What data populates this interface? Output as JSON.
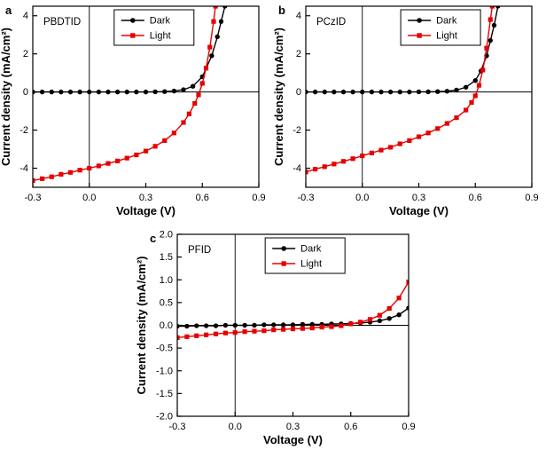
{
  "figure": {
    "background": "#ffffff"
  },
  "colors": {
    "dark_series": "#000000",
    "light_series": "#e60000",
    "axis": "#000000"
  },
  "chart_data": [
    {
      "id": "a",
      "type": "line",
      "panel_label": "a",
      "inner_label": "PBDTID",
      "xlabel": "Voltage (V)",
      "ylabel": "Current density (mA/cm²)",
      "xlim": [
        -0.3,
        0.9
      ],
      "ylim": [
        -5,
        4.5
      ],
      "xticks": [
        -0.3,
        0.0,
        0.3,
        0.6,
        0.9
      ],
      "xtick_labels": [
        "-0.3",
        "0.0",
        "0.3",
        "0.6",
        "0.9"
      ],
      "yticks": [
        -4,
        -2,
        0,
        2,
        4
      ],
      "ytick_labels": [
        "-4",
        "-2",
        "0",
        "2",
        "4"
      ],
      "zero_lines": true,
      "grid": false,
      "legend": {
        "position": "top-center",
        "x_frac": 0.36,
        "entries": [
          "Dark",
          "Light"
        ]
      },
      "series": [
        {
          "name": "Dark",
          "color": "#000000",
          "marker": "circle",
          "points": [
            [
              -0.3,
              0
            ],
            [
              -0.25,
              0
            ],
            [
              -0.2,
              0
            ],
            [
              -0.15,
              0
            ],
            [
              -0.1,
              0
            ],
            [
              -0.05,
              0
            ],
            [
              0,
              0
            ],
            [
              0.05,
              0
            ],
            [
              0.1,
              0
            ],
            [
              0.15,
              0
            ],
            [
              0.2,
              0
            ],
            [
              0.25,
              0
            ],
            [
              0.3,
              0
            ],
            [
              0.35,
              0.01
            ],
            [
              0.4,
              0.02
            ],
            [
              0.45,
              0.05
            ],
            [
              0.5,
              0.12
            ],
            [
              0.55,
              0.3
            ],
            [
              0.6,
              0.8
            ],
            [
              0.65,
              1.9
            ],
            [
              0.68,
              2.9
            ],
            [
              0.7,
              3.7
            ],
            [
              0.72,
              4.5
            ]
          ]
        },
        {
          "name": "Light",
          "color": "#e60000",
          "marker": "square",
          "points": [
            [
              -0.3,
              -4.65
            ],
            [
              -0.25,
              -4.55
            ],
            [
              -0.2,
              -4.45
            ],
            [
              -0.15,
              -4.32
            ],
            [
              -0.1,
              -4.22
            ],
            [
              -0.05,
              -4.1
            ],
            [
              0,
              -4.0
            ],
            [
              0.05,
              -3.88
            ],
            [
              0.1,
              -3.75
            ],
            [
              0.15,
              -3.62
            ],
            [
              0.2,
              -3.47
            ],
            [
              0.25,
              -3.3
            ],
            [
              0.3,
              -3.1
            ],
            [
              0.35,
              -2.85
            ],
            [
              0.4,
              -2.55
            ],
            [
              0.45,
              -2.15
            ],
            [
              0.5,
              -1.6
            ],
            [
              0.53,
              -1.15
            ],
            [
              0.56,
              -0.6
            ],
            [
              0.58,
              -0.15
            ],
            [
              0.6,
              0.45
            ],
            [
              0.62,
              1.25
            ],
            [
              0.64,
              2.35
            ],
            [
              0.66,
              3.7
            ],
            [
              0.67,
              4.5
            ]
          ]
        }
      ]
    },
    {
      "id": "b",
      "type": "line",
      "panel_label": "b",
      "inner_label": "PCzID",
      "xlabel": "Voltage (V)",
      "ylabel": "Current density (mA/cm²)",
      "xlim": [
        -0.3,
        0.9
      ],
      "ylim": [
        -5,
        4.5
      ],
      "xticks": [
        -0.3,
        0.0,
        0.3,
        0.6,
        0.9
      ],
      "xtick_labels": [
        "-0.3",
        "0.0",
        "0.3",
        "0.6",
        "0.9"
      ],
      "yticks": [
        -4,
        -2,
        0,
        2,
        4
      ],
      "ytick_labels": [
        "-4",
        "-2",
        "0",
        "2",
        "4"
      ],
      "zero_lines": true,
      "grid": false,
      "legend": {
        "position": "top-center",
        "x_frac": 0.42,
        "entries": [
          "Dark",
          "Light"
        ]
      },
      "series": [
        {
          "name": "Dark",
          "color": "#000000",
          "marker": "circle",
          "points": [
            [
              -0.3,
              0
            ],
            [
              -0.25,
              0
            ],
            [
              -0.2,
              0
            ],
            [
              -0.15,
              0
            ],
            [
              -0.1,
              0
            ],
            [
              -0.05,
              0
            ],
            [
              0,
              0
            ],
            [
              0.05,
              0
            ],
            [
              0.1,
              0
            ],
            [
              0.15,
              0
            ],
            [
              0.2,
              0
            ],
            [
              0.25,
              0
            ],
            [
              0.3,
              0.01
            ],
            [
              0.35,
              0.01
            ],
            [
              0.4,
              0.02
            ],
            [
              0.45,
              0.04
            ],
            [
              0.5,
              0.1
            ],
            [
              0.55,
              0.25
            ],
            [
              0.6,
              0.6
            ],
            [
              0.63,
              1.1
            ],
            [
              0.66,
              1.9
            ],
            [
              0.68,
              2.7
            ],
            [
              0.7,
              3.5
            ],
            [
              0.72,
              4.5
            ]
          ]
        },
        {
          "name": "Light",
          "color": "#e60000",
          "marker": "square",
          "points": [
            [
              -0.3,
              -4.2
            ],
            [
              -0.25,
              -4.05
            ],
            [
              -0.2,
              -3.92
            ],
            [
              -0.15,
              -3.78
            ],
            [
              -0.1,
              -3.64
            ],
            [
              -0.05,
              -3.5
            ],
            [
              0,
              -3.35
            ],
            [
              0.05,
              -3.2
            ],
            [
              0.1,
              -3.05
            ],
            [
              0.15,
              -2.9
            ],
            [
              0.2,
              -2.72
            ],
            [
              0.25,
              -2.55
            ],
            [
              0.3,
              -2.35
            ],
            [
              0.35,
              -2.15
            ],
            [
              0.4,
              -1.92
            ],
            [
              0.45,
              -1.65
            ],
            [
              0.5,
              -1.35
            ],
            [
              0.55,
              -0.95
            ],
            [
              0.58,
              -0.55
            ],
            [
              0.6,
              -0.2
            ],
            [
              0.62,
              0.35
            ],
            [
              0.64,
              1.15
            ],
            [
              0.66,
              2.3
            ],
            [
              0.68,
              3.8
            ],
            [
              0.69,
              4.5
            ]
          ]
        }
      ]
    },
    {
      "id": "c",
      "type": "line",
      "panel_label": "c",
      "inner_label": "PFID",
      "xlabel": "Voltage (V)",
      "ylabel": "Current density (mA/cm²)",
      "xlim": [
        -0.3,
        0.9
      ],
      "ylim": [
        -2,
        2
      ],
      "xticks": [
        -0.3,
        0.0,
        0.3,
        0.6,
        0.9
      ],
      "xtick_labels": [
        "-0.3",
        "0.0",
        "0.3",
        "0.6",
        "0.9"
      ],
      "yticks": [
        -2,
        -1.5,
        -1,
        -0.5,
        0,
        0.5,
        1,
        1.5,
        2
      ],
      "ytick_labels": [
        "-2.0",
        "-1.5",
        "-1.0",
        "-0.5",
        "0.0",
        "0.5",
        "1.0",
        "1.5",
        "2.0"
      ],
      "zero_lines": true,
      "grid": false,
      "legend": {
        "position": "top-center",
        "x_frac": 0.38,
        "entries": [
          "Dark",
          "Light"
        ]
      },
      "series": [
        {
          "name": "Dark",
          "color": "#000000",
          "marker": "circle",
          "points": [
            [
              -0.3,
              -0.02
            ],
            [
              -0.25,
              -0.02
            ],
            [
              -0.2,
              -0.01
            ],
            [
              -0.15,
              -0.01
            ],
            [
              -0.1,
              -0.01
            ],
            [
              -0.05,
              0
            ],
            [
              0,
              0
            ],
            [
              0.05,
              0
            ],
            [
              0.1,
              0
            ],
            [
              0.15,
              0.01
            ],
            [
              0.2,
              0.01
            ],
            [
              0.25,
              0.01
            ],
            [
              0.3,
              0.01
            ],
            [
              0.35,
              0.02
            ],
            [
              0.4,
              0.02
            ],
            [
              0.45,
              0.02
            ],
            [
              0.5,
              0.03
            ],
            [
              0.55,
              0.03
            ],
            [
              0.6,
              0.04
            ],
            [
              0.65,
              0.05
            ],
            [
              0.7,
              0.07
            ],
            [
              0.75,
              0.1
            ],
            [
              0.8,
              0.15
            ],
            [
              0.85,
              0.23
            ],
            [
              0.9,
              0.38
            ]
          ]
        },
        {
          "name": "Light",
          "color": "#e60000",
          "marker": "square",
          "points": [
            [
              -0.3,
              -0.27
            ],
            [
              -0.25,
              -0.25
            ],
            [
              -0.2,
              -0.23
            ],
            [
              -0.15,
              -0.21
            ],
            [
              -0.1,
              -0.19
            ],
            [
              -0.05,
              -0.17
            ],
            [
              0,
              -0.16
            ],
            [
              0.05,
              -0.14
            ],
            [
              0.1,
              -0.13
            ],
            [
              0.15,
              -0.12
            ],
            [
              0.2,
              -0.1
            ],
            [
              0.25,
              -0.09
            ],
            [
              0.3,
              -0.08
            ],
            [
              0.35,
              -0.07
            ],
            [
              0.4,
              -0.06
            ],
            [
              0.45,
              -0.04
            ],
            [
              0.5,
              -0.03
            ],
            [
              0.55,
              -0.01
            ],
            [
              0.6,
              0.03
            ],
            [
              0.65,
              0.07
            ],
            [
              0.7,
              0.13
            ],
            [
              0.75,
              0.22
            ],
            [
              0.8,
              0.37
            ],
            [
              0.85,
              0.6
            ],
            [
              0.9,
              0.95
            ]
          ]
        }
      ]
    }
  ]
}
